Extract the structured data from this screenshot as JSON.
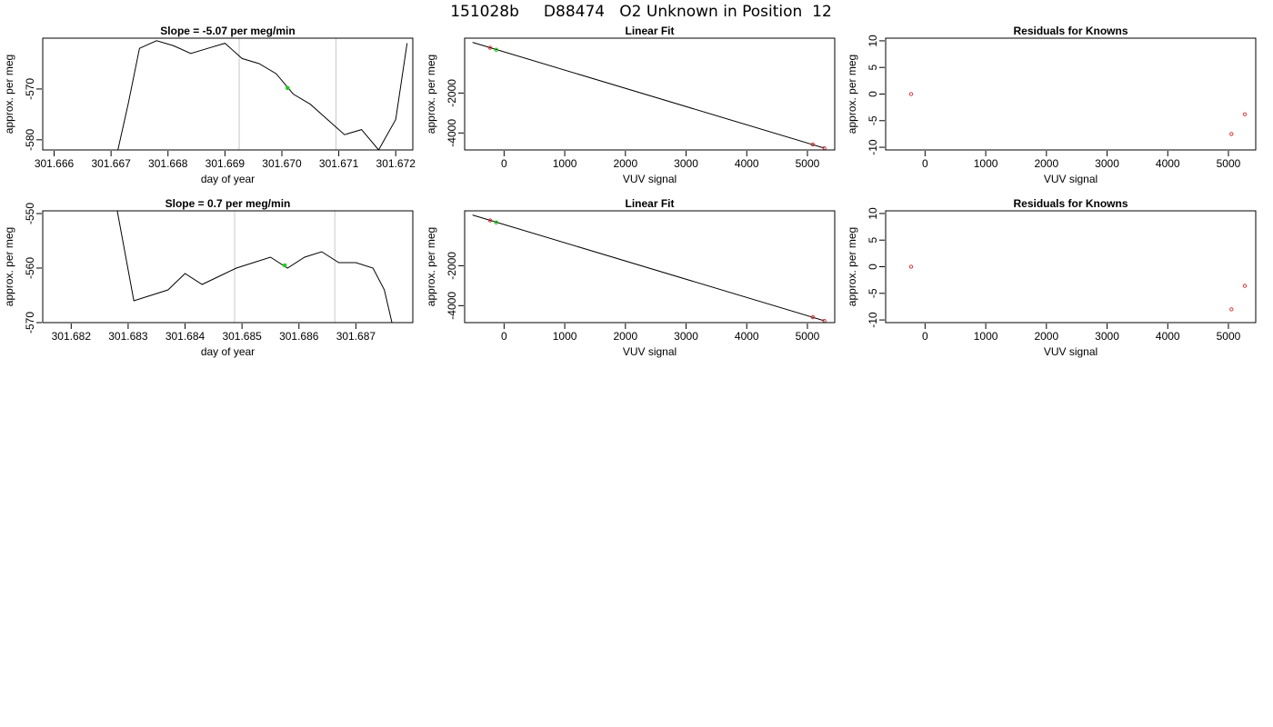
{
  "figure_title": "151028b     D88474   O2 Unknown in Position  12",
  "colors": {
    "line": "#000000",
    "vline": "#c8c8c8",
    "known": "#d62728",
    "unknown": "#22cc22",
    "frame": "#000000"
  },
  "chart_data": [
    {
      "id": "trace-1",
      "type": "line",
      "title": "Slope =  -5.07  per meg/min",
      "xlabel": "day of year",
      "ylabel": "approx. per meg",
      "xlim": [
        301.6658,
        301.6723
      ],
      "ylim": [
        -582.0,
        -560.0
      ],
      "x_ticks": [
        301.666,
        301.667,
        301.668,
        301.669,
        301.67,
        301.671,
        301.672
      ],
      "x_tick_labels": [
        "301.666",
        "301.667",
        "301.668",
        "301.669",
        "301.670",
        "301.671",
        "301.672"
      ],
      "y_ticks": [
        -580,
        -570
      ],
      "y_tick_labels": [
        "-580",
        "-570"
      ],
      "vlines": [
        301.66925,
        301.67095
      ],
      "marker": {
        "x": 301.6701,
        "y": -569.8
      },
      "series": [
        {
          "x": [
            301.6671,
            301.6673,
            301.6675,
            301.6678,
            301.6681,
            301.6684,
            301.6687,
            301.669,
            301.6693,
            301.6696,
            301.6699,
            301.6702,
            301.6705,
            301.6708,
            301.6711,
            301.6714,
            301.6717,
            301.672,
            301.6722
          ],
          "y": [
            -583.0,
            -573.0,
            -562.0,
            -560.5,
            -561.5,
            -563.0,
            -562.0,
            -561.0,
            -564.0,
            -565.0,
            -567.0,
            -571.0,
            -573.0,
            -576.0,
            -579.0,
            -578.0,
            -582.0,
            -576.0,
            -561.0
          ]
        }
      ]
    },
    {
      "id": "fit-1",
      "type": "scatter",
      "title": "Linear Fit",
      "xlabel": "VUV signal",
      "ylabel": "approx. per meg",
      "xlim": [
        -650,
        5450
      ],
      "ylim": [
        -4850,
        750
      ],
      "x_ticks": [
        0,
        1000,
        2000,
        3000,
        4000,
        5000
      ],
      "x_tick_labels": [
        "0",
        "1000",
        "2000",
        "3000",
        "4000",
        "5000"
      ],
      "y_ticks": [
        -4000,
        -2000
      ],
      "y_tick_labels": [
        "-4000",
        "-2000"
      ],
      "fit_line": {
        "x": [
          -520,
          5280
        ],
        "y": [
          540,
          -4760
        ]
      },
      "knowns": {
        "x": [
          -230,
          5090,
          5280
        ],
        "y": [
          270,
          -4580,
          -4760
        ]
      },
      "unknowns": {
        "x": [
          -130
        ],
        "y": [
          170
        ]
      }
    },
    {
      "id": "resid-1",
      "type": "scatter",
      "title": "Residuals for Knowns",
      "xlabel": "VUV signal",
      "ylabel": "approx. per meg",
      "xlim": [
        -650,
        5450
      ],
      "ylim": [
        -10.5,
        10.5
      ],
      "x_ticks": [
        0,
        1000,
        2000,
        3000,
        4000,
        5000
      ],
      "x_tick_labels": [
        "0",
        "1000",
        "2000",
        "3000",
        "4000",
        "5000"
      ],
      "y_ticks": [
        -10,
        -5,
        0,
        5,
        10
      ],
      "y_tick_labels": [
        "-10",
        "-5",
        "0",
        "5",
        "10"
      ],
      "knowns": {
        "x": [
          -230,
          5050,
          5270
        ],
        "y": [
          0.0,
          -7.5,
          -3.8
        ]
      }
    },
    {
      "id": "trace-2",
      "type": "line",
      "title": "Slope =  0.7  per meg/min",
      "xlabel": "day of year",
      "ylabel": "approx. per meg",
      "xlim": [
        301.6815,
        301.688
      ],
      "ylim": [
        -570.0,
        -549.5
      ],
      "x_ticks": [
        301.682,
        301.683,
        301.684,
        301.685,
        301.686,
        301.687
      ],
      "x_tick_labels": [
        "301.682",
        "301.683",
        "301.684",
        "301.685",
        "301.686",
        "301.687"
      ],
      "y_ticks": [
        -570,
        -560,
        -550
      ],
      "y_tick_labels": [
        "-570",
        "-560",
        "-550"
      ],
      "vlines": [
        301.68487,
        301.68663
      ],
      "marker": {
        "x": 301.68575,
        "y": -559.5
      },
      "series": [
        {
          "x": [
            301.6828,
            301.6831,
            301.6834,
            301.6837,
            301.684,
            301.6843,
            301.6846,
            301.6849,
            301.6852,
            301.6855,
            301.6858,
            301.6861,
            301.6864,
            301.6867,
            301.687,
            301.6873,
            301.6875,
            301.6877
          ],
          "y": [
            -549.0,
            -566.0,
            -565.0,
            -564.0,
            -561.0,
            -563.0,
            -561.5,
            -560.0,
            -559.0,
            -558.0,
            -560.0,
            -558.0,
            -557.0,
            -559.0,
            -559.0,
            -560.0,
            -564.0,
            -573.0
          ]
        }
      ]
    },
    {
      "id": "fit-2",
      "type": "scatter",
      "title": "Linear Fit",
      "xlabel": "VUV signal",
      "ylabel": "approx. per meg",
      "xlim": [
        -650,
        5450
      ],
      "ylim": [
        -4850,
        750
      ],
      "x_ticks": [
        0,
        1000,
        2000,
        3000,
        4000,
        5000
      ],
      "x_tick_labels": [
        "0",
        "1000",
        "2000",
        "3000",
        "4000",
        "5000"
      ],
      "y_ticks": [
        -4000,
        -2000
      ],
      "y_tick_labels": [
        "-4000",
        "-2000"
      ],
      "fit_line": {
        "x": [
          -520,
          5280
        ],
        "y": [
          540,
          -4760
        ]
      },
      "knowns": {
        "x": [
          -230,
          5090,
          5280
        ],
        "y": [
          270,
          -4580,
          -4760
        ]
      },
      "unknowns": {
        "x": [
          -130
        ],
        "y": [
          170
        ]
      }
    },
    {
      "id": "resid-2",
      "type": "scatter",
      "title": "Residuals for Knowns",
      "xlabel": "VUV signal",
      "ylabel": "approx. per meg",
      "xlim": [
        -650,
        5450
      ],
      "ylim": [
        -10.5,
        10.5
      ],
      "x_ticks": [
        0,
        1000,
        2000,
        3000,
        4000,
        5000
      ],
      "x_tick_labels": [
        "0",
        "1000",
        "2000",
        "3000",
        "4000",
        "5000"
      ],
      "y_ticks": [
        -10,
        -5,
        0,
        5,
        10
      ],
      "y_tick_labels": [
        "-10",
        "-5",
        "0",
        "5",
        "10"
      ],
      "knowns": {
        "x": [
          -230,
          5050,
          5270
        ],
        "y": [
          0.0,
          -8.0,
          -3.6
        ]
      }
    }
  ]
}
